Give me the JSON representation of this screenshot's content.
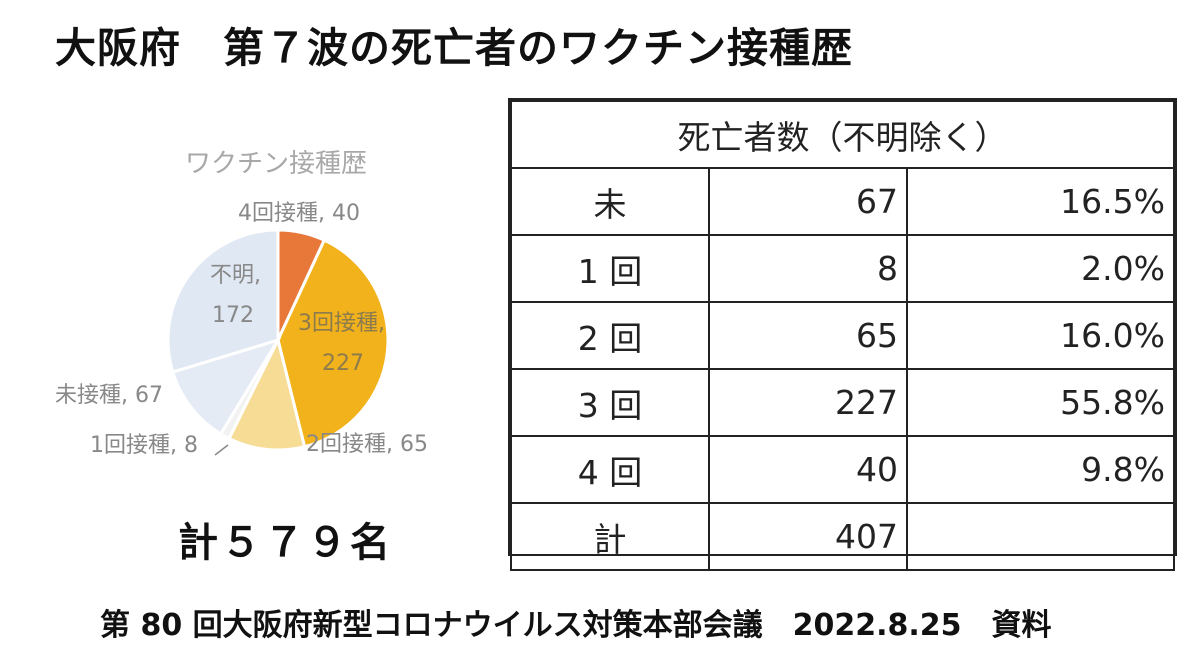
{
  "title": "大阪府　第７波の死亡者のワクチン接種歴",
  "chart_data": {
    "type": "pie",
    "title": "ワクチン接種歴",
    "slices": [
      {
        "label": "4回接種",
        "value": 40,
        "display": "4回接種, 40",
        "color": "#e8773a"
      },
      {
        "label": "3回接種",
        "value": 227,
        "display_line1": "3回接種,",
        "display_line2": "227",
        "color": "#f2b21c"
      },
      {
        "label": "2回接種",
        "value": 65,
        "display": "2回接種, 65",
        "color": "#f7dc95"
      },
      {
        "label": "1回接種",
        "value": 8,
        "display": "1回接種, 8",
        "color": "#f2f2f2"
      },
      {
        "label": "未接種",
        "value": 67,
        "display": "未接種, 67",
        "color": "#e4ebf4"
      },
      {
        "label": "不明",
        "value": 172,
        "display_line1": "不明,",
        "display_line2": "172",
        "color": "#dfe8f3"
      }
    ]
  },
  "total": "計５７９名",
  "table": {
    "header": "死亡者数（不明除く）",
    "rows": [
      {
        "category": "未",
        "count": "67",
        "percent": "16.5%"
      },
      {
        "category": "1 回",
        "count": "8",
        "percent": "2.0%"
      },
      {
        "category": "2 回",
        "count": "65",
        "percent": "16.0%"
      },
      {
        "category": "3 回",
        "count": "227",
        "percent": "55.8%"
      },
      {
        "category": "4 回",
        "count": "40",
        "percent": "9.8%"
      },
      {
        "category": "計",
        "count": "407",
        "percent": ""
      }
    ]
  },
  "footer": "第 80 回大阪府新型コロナウイルス対策本部会議　2022.8.25　資料"
}
